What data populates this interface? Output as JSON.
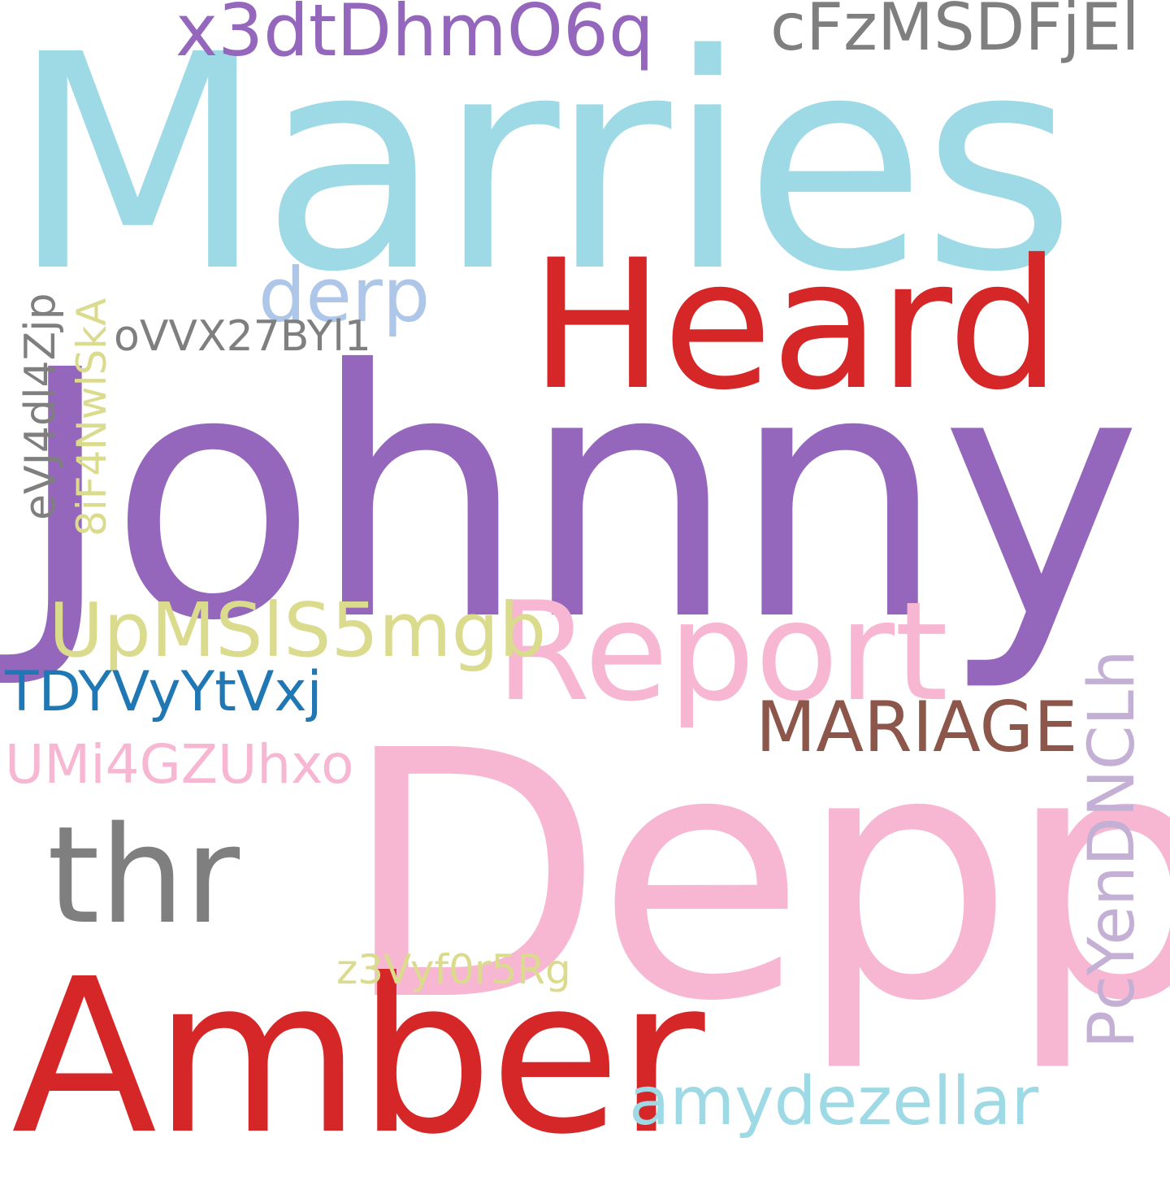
{
  "words": [
    {
      "text": "Marries",
      "color": "#9edae5"
    },
    {
      "text": "Johnny",
      "color": "#9467bd"
    },
    {
      "text": "Depp",
      "color": "#f7b6d2"
    },
    {
      "text": "Amber",
      "color": "#d62728"
    },
    {
      "text": "Heard",
      "color": "#d62728"
    },
    {
      "text": "Report",
      "color": "#f7b6d2"
    },
    {
      "text": "thr",
      "color": "#7f7f7f"
    },
    {
      "text": "x3dtDhmO6q",
      "color": "#9467bd"
    },
    {
      "text": "cFzMSDFjEl",
      "color": "#7f7f7f"
    },
    {
      "text": "derp",
      "color": "#aec7e8"
    },
    {
      "text": "oVVX27BYl1",
      "color": "#7f7f7f"
    },
    {
      "text": "eVJ4dl4Zjp",
      "color": "#7f7f7f"
    },
    {
      "text": "8iF4NwlSkA",
      "color": "#dbdb8d"
    },
    {
      "text": "UpMSlS5mgb",
      "color": "#dbdb8d"
    },
    {
      "text": "TDYVyYtVxj",
      "color": "#1f77b4"
    },
    {
      "text": "UMi4GZUhxo",
      "color": "#f7b6d2"
    },
    {
      "text": "MARIAGE",
      "color": "#8c564b"
    },
    {
      "text": "PcYenDNCLh",
      "color": "#c5b0d5"
    },
    {
      "text": "z3Vyf0r5Rg",
      "color": "#dbdb8d"
    },
    {
      "text": "amydezellar",
      "color": "#9edae5"
    }
  ]
}
